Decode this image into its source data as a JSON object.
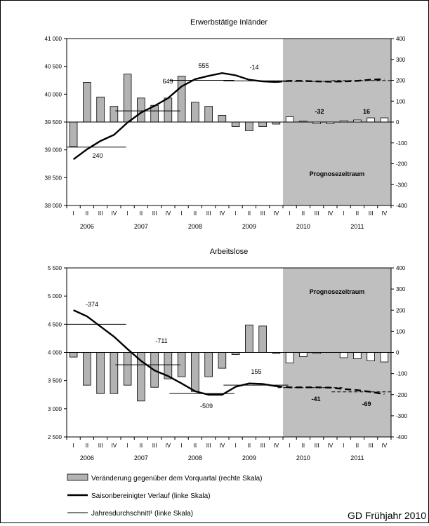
{
  "chart_data": [
    {
      "type": "bar",
      "title": "Erwerbstätige Inländer",
      "x_categories": [
        "I",
        "II",
        "III",
        "IV",
        "I",
        "II",
        "III",
        "IV",
        "I",
        "II",
        "III",
        "IV",
        "I",
        "II",
        "III",
        "IV",
        "I",
        "II",
        "III",
        "IV",
        "I",
        "II",
        "III",
        "IV"
      ],
      "year_labels": [
        "2006",
        "2007",
        "2008",
        "2009",
        "2010",
        "2011"
      ],
      "left_axis": {
        "ylim": [
          38000,
          41000
        ],
        "ticks": [
          "38 000",
          "38 500",
          "39 000",
          "39 500",
          "40 000",
          "40 500",
          "41 000"
        ]
      },
      "right_axis": {
        "ylim": [
          -400,
          400
        ],
        "ticks": [
          "-400",
          "-300",
          "-200",
          "-100",
          "0",
          "100",
          "200",
          "300",
          "400"
        ]
      },
      "series": [
        {
          "name": "Veränderung gegenüber dem Vorquartal (rechte Skala)",
          "axis": "right",
          "kind": "bar",
          "values": [
            -118,
            190,
            120,
            75,
            230,
            115,
            80,
            115,
            220,
            95,
            75,
            32,
            -22,
            -42,
            -22,
            -10,
            25,
            4,
            -8,
            -8,
            6,
            10,
            20,
            20
          ]
        },
        {
          "name": "Saisonbereinigter Verlauf (linke Skala)",
          "axis": "left",
          "kind": "line",
          "values": [
            38830,
            39010,
            39160,
            39270,
            39490,
            39670,
            39790,
            39930,
            40140,
            40270,
            40330,
            40380,
            40340,
            40260,
            40230,
            40220,
            40240,
            40240,
            40230,
            40225,
            40230,
            40240,
            40260,
            40270
          ],
          "dashed_from_index": 16
        },
        {
          "name": "Jahresdurchschnitt¹ (linke Skala)",
          "axis": "left",
          "kind": "annual",
          "values": [
            39050,
            39700,
            40250,
            40240,
            40230,
            40245
          ]
        }
      ],
      "annotations": [
        "240",
        "649",
        "555",
        "-14",
        "-32",
        "16"
      ],
      "annotations_bold": [
        false,
        false,
        false,
        false,
        true,
        true
      ],
      "forecast_label": "Prognosezeitraum",
      "forecast_from_index": 16
    },
    {
      "type": "bar",
      "title": "Arbeitslose",
      "x_categories": [
        "I",
        "II",
        "III",
        "IV",
        "I",
        "II",
        "III",
        "IV",
        "I",
        "II",
        "III",
        "IV",
        "I",
        "II",
        "III",
        "IV",
        "I",
        "II",
        "III",
        "IV",
        "I",
        "II",
        "III",
        "IV"
      ],
      "year_labels": [
        "2006",
        "2007",
        "2008",
        "2009",
        "2010",
        "2011"
      ],
      "left_axis": {
        "ylim": [
          2500,
          5500
        ],
        "ticks": [
          "2 500",
          "3 000",
          "3 500",
          "4 000",
          "4 500",
          "5 000",
          "5 500"
        ]
      },
      "right_axis": {
        "ylim": [
          -400,
          400
        ],
        "ticks": [
          "-400",
          "-300",
          "-200",
          "-100",
          "0",
          "100",
          "200",
          "300",
          "400"
        ]
      },
      "series": [
        {
          "name": "Veränderung gegenüber dem Vorquartal (rechte Skala)",
          "axis": "right",
          "kind": "bar",
          "values": [
            -22,
            -155,
            -195,
            -195,
            -155,
            -230,
            -165,
            -125,
            -115,
            -185,
            -115,
            -75,
            -10,
            130,
            125,
            -5,
            -50,
            -20,
            -5,
            0,
            -25,
            -30,
            -40,
            -45
          ]
        },
        {
          "name": "Saisonbereinigter Verlauf (linke Skala)",
          "axis": "left",
          "kind": "line",
          "values": [
            4750,
            4640,
            4460,
            4280,
            4060,
            3850,
            3680,
            3580,
            3450,
            3310,
            3250,
            3250,
            3390,
            3450,
            3440,
            3400,
            3380,
            3380,
            3380,
            3375,
            3350,
            3330,
            3300,
            3260
          ],
          "dashed_from_index": 16
        },
        {
          "name": "Jahresdurchschnitt¹ (linke Skala)",
          "axis": "left",
          "kind": "annual",
          "values": [
            4500,
            3780,
            3270,
            3420,
            3375,
            3300
          ]
        }
      ],
      "annotations": [
        "-374",
        "-711",
        "-509",
        "155",
        "-41",
        "-69"
      ],
      "annotations_bold": [
        false,
        false,
        false,
        false,
        true,
        true
      ],
      "forecast_label": "Prognosezeitraum",
      "forecast_from_index": 16
    }
  ],
  "legend": {
    "bars": "Veränderung gegenüber dem Vorquartal (rechte Skala)",
    "trend": "Saisonbereinigter Verlauf (linke Skala)",
    "annual": "Jahresdurchschnitt¹ (linke Skala)"
  },
  "source": "GD Frühjahr 2010",
  "colors": {
    "bar": "#b3b3b3",
    "forecast_bar": "#ffffff",
    "forecast_bg": "#bfbfbf",
    "line": "#000000"
  }
}
